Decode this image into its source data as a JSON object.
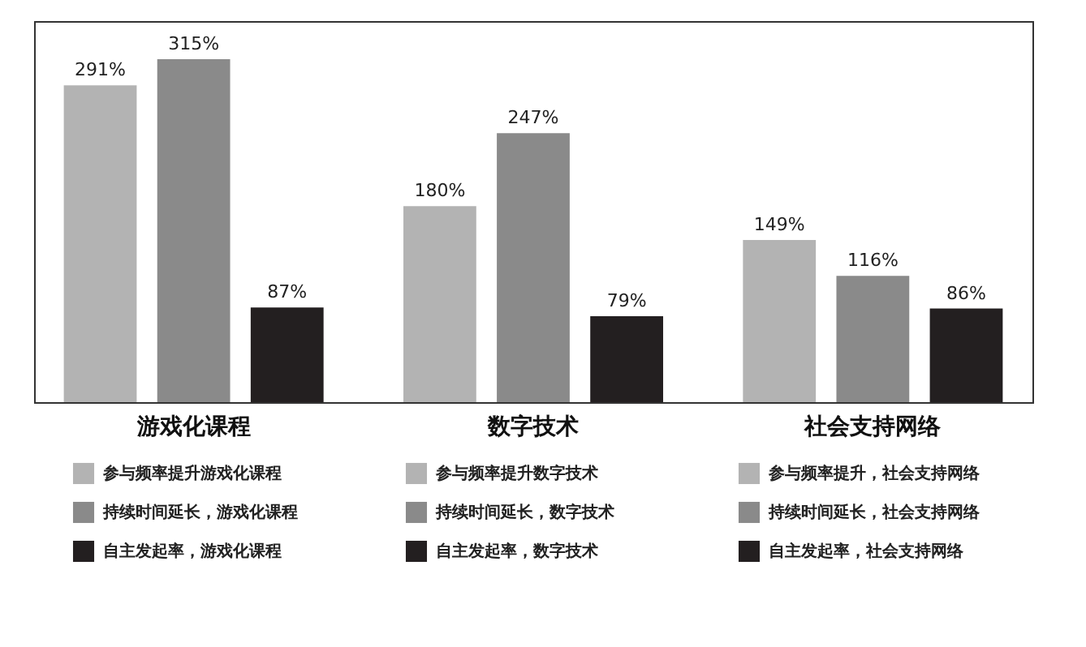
{
  "chart_data": {
    "type": "bar",
    "categories": [
      "游戏化课程",
      "数字技术",
      "社会支持网络"
    ],
    "series": [
      {
        "name": "参与频率提升游戏化课程",
        "color": "#b3b3b3",
        "values": [
          291,
          null,
          null
        ],
        "value_labels": [
          "291%",
          null,
          null
        ]
      },
      {
        "name": "持续时间延长，游戏化课程",
        "color": "#8a8a8a",
        "values": [
          315,
          null,
          null
        ],
        "value_labels": [
          "315%",
          null,
          null
        ]
      },
      {
        "name": "自主发起率，游戏化课程",
        "color": "#231f20",
        "values": [
          87,
          null,
          null
        ],
        "value_labels": [
          "87%",
          null,
          null
        ]
      },
      {
        "name": "参与频率提升数字技术",
        "color": "#b3b3b3",
        "values": [
          null,
          180,
          null
        ],
        "value_labels": [
          null,
          "180%",
          null
        ]
      },
      {
        "name": "持续时间延长，数字技术",
        "color": "#8a8a8a",
        "values": [
          null,
          247,
          null
        ],
        "value_labels": [
          null,
          "247%",
          null
        ]
      },
      {
        "name": "自主发起率，数字技术",
        "color": "#231f20",
        "values": [
          null,
          79,
          null
        ],
        "value_labels": [
          null,
          "79%",
          null
        ]
      },
      {
        "name": "参与频率提升，社会支持网络",
        "color": "#b3b3b3",
        "values": [
          null,
          null,
          149
        ],
        "value_labels": [
          null,
          null,
          "149%"
        ]
      },
      {
        "name": "持续时间延长，社会支持网络",
        "color": "#8a8a8a",
        "values": [
          null,
          null,
          116
        ],
        "value_labels": [
          null,
          null,
          "116%"
        ]
      },
      {
        "name": "自主发起率，社会支持网络",
        "color": "#231f20",
        "values": [
          null,
          null,
          86
        ],
        "value_labels": [
          null,
          null,
          "86%"
        ]
      }
    ],
    "legend": "bottom",
    "tick_labels": "x"
  }
}
